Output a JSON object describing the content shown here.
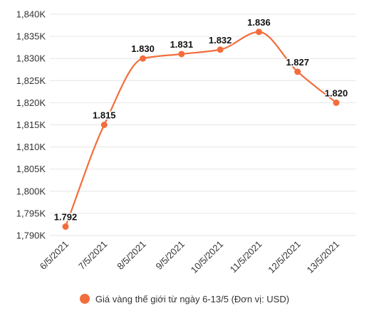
{
  "chart_data": {
    "type": "line",
    "title": "",
    "xlabel": "",
    "ylabel": "",
    "categories": [
      "6/5/2021",
      "7/5/2021",
      "8/5/2021",
      "9/5/2021",
      "10/5/2021",
      "11/5/2021",
      "12/5/2021",
      "13/5/2021"
    ],
    "series": [
      {
        "name": "Giá vàng thế giới từ ngày 6-13/5 (Đơn vị: USD)",
        "values": [
          1792,
          1815,
          1830,
          1831,
          1832,
          1836,
          1827,
          1820
        ],
        "data_labels": [
          "1.792",
          "1.815",
          "1.830",
          "1.831",
          "1.832",
          "1.836",
          "1.827",
          "1.820"
        ],
        "color": "#f36d3c"
      }
    ],
    "ylim": [
      1790,
      1840
    ],
    "y_ticks": [
      1790,
      1795,
      1800,
      1805,
      1810,
      1815,
      1820,
      1825,
      1830,
      1835,
      1840
    ],
    "y_tick_labels": [
      "1,790K",
      "1,795K",
      "1,800K",
      "1,805K",
      "1,810K",
      "1,815K",
      "1,820K",
      "1,825K",
      "1,830K",
      "1,835K",
      "1,840K"
    ],
    "grid": true,
    "legend_position": "bottom",
    "smooth": true
  }
}
